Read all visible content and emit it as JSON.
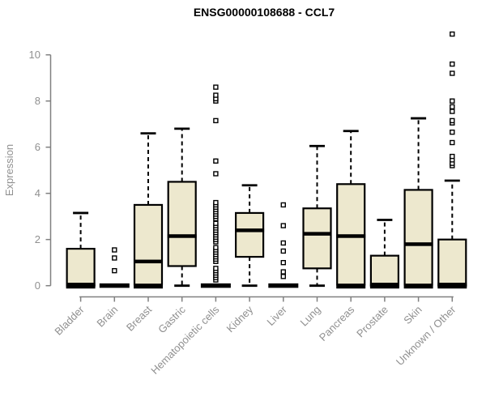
{
  "window": {
    "background": "#ffffff"
  },
  "chart_data": {
    "type": "boxplot",
    "title": "ENSG00000108688 - CCL7",
    "ylabel": "Expression",
    "xlabel": "",
    "ylim": [
      0,
      11
    ],
    "yticks": [
      0,
      2,
      4,
      6,
      8,
      10
    ],
    "grid": false,
    "legend": null,
    "categories": [
      "Bladder",
      "Brain",
      "Breast",
      "Gastric",
      "Hematopoietic cells",
      "Kidney",
      "Liver",
      "Lung",
      "Pancreas",
      "Prostate",
      "Skin",
      "Unknown / Other"
    ],
    "boxes": [
      {
        "category": "Bladder",
        "low": 0,
        "q1": 0,
        "median": 0.05,
        "q3": 1.6,
        "high": 3.15,
        "outliers": []
      },
      {
        "category": "Brain",
        "low": 0,
        "q1": 0,
        "median": 0.03,
        "q3": 0.03,
        "high": 0.03,
        "outliers": [
          0.65,
          1.2,
          1.55
        ]
      },
      {
        "category": "Breast",
        "low": 0,
        "q1": 0.05,
        "median": 1.05,
        "q3": 3.5,
        "high": 6.6,
        "outliers": []
      },
      {
        "category": "Gastric",
        "low": 0,
        "q1": 0.85,
        "median": 2.15,
        "q3": 4.5,
        "high": 6.8,
        "outliers": []
      },
      {
        "category": "Hematopoietic cells",
        "low": 0,
        "q1": 0,
        "median": 0.03,
        "q3": 0.03,
        "high": 0.03,
        "outliers": [
          0.25,
          0.35,
          0.45,
          0.55,
          0.65,
          0.75,
          1.05,
          1.15,
          1.25,
          1.35,
          1.45,
          1.55,
          1.65,
          1.9,
          2.0,
          2.1,
          2.2,
          2.3,
          2.4,
          2.5,
          2.6,
          2.7,
          2.9,
          3.0,
          3.1,
          3.2,
          3.3,
          3.4,
          3.5,
          3.6,
          4.85,
          5.4,
          7.15,
          8.0,
          8.1,
          8.25,
          8.6
        ]
      },
      {
        "category": "Kidney",
        "low": 0,
        "q1": 1.25,
        "median": 2.4,
        "q3": 3.15,
        "high": 4.35,
        "outliers": []
      },
      {
        "category": "Liver",
        "low": 0,
        "q1": 0,
        "median": 0.03,
        "q3": 0.03,
        "high": 0.03,
        "outliers": [
          0.4,
          0.6,
          1.0,
          1.5,
          1.85,
          2.6,
          3.5
        ]
      },
      {
        "category": "Lung",
        "low": 0,
        "q1": 0.75,
        "median": 2.25,
        "q3": 3.35,
        "high": 6.05,
        "outliers": []
      },
      {
        "category": "Pancreas",
        "low": 0,
        "q1": 0.05,
        "median": 2.15,
        "q3": 4.4,
        "high": 6.7,
        "outliers": []
      },
      {
        "category": "Prostate",
        "low": 0,
        "q1": 0,
        "median": 0.05,
        "q3": 1.3,
        "high": 2.85,
        "outliers": []
      },
      {
        "category": "Skin",
        "low": 0,
        "q1": 0.05,
        "median": 1.8,
        "q3": 4.15,
        "high": 7.25,
        "outliers": []
      },
      {
        "category": "Unknown / Other",
        "low": 0,
        "q1": 0,
        "median": 0.05,
        "q3": 2.0,
        "high": 4.55,
        "outliers": [
          5.2,
          5.3,
          5.45,
          5.6,
          6.2,
          6.65,
          7.05,
          7.15,
          7.55,
          7.75,
          8.0,
          9.2,
          9.6,
          10.9
        ]
      }
    ],
    "colors": {
      "box_fill": "#EDE8CE",
      "box_stroke": "#000000",
      "median": "#000000",
      "whisker": "#000000",
      "outlier_stroke": "#000000",
      "axis": "#808080",
      "tick_text": "#909090",
      "title_text": "#000000"
    }
  }
}
